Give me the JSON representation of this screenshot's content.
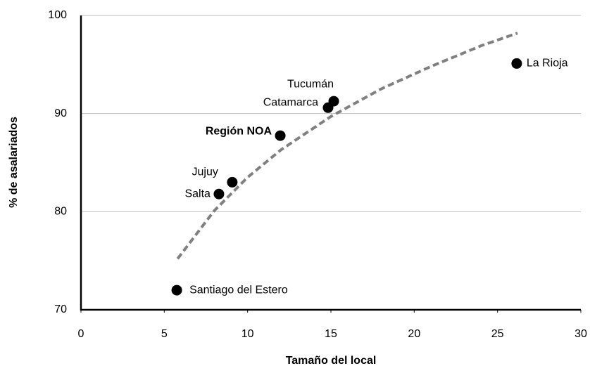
{
  "chart_data": {
    "type": "scatter",
    "xlabel": "Tamaño del local",
    "ylabel": "% de asalariados",
    "series": [
      {
        "color": "#000000",
        "labels": [
          "Santiago del Estero",
          "Salta",
          "Jujuy",
          "Región NOA",
          "Catamarca",
          "Tucumán",
          "La Rioja"
        ],
        "x": [
          5.75,
          8.28,
          9.08,
          11.96,
          14.83,
          15.17,
          26.15
        ],
        "values": [
          72.0,
          81.8,
          83.0,
          87.75,
          90.6,
          91.26,
          95.1
        ]
      }
    ],
    "trendline": {
      "color": "#808080",
      "x": [
        5.8,
        8,
        10,
        12,
        15,
        18,
        21,
        24,
        26.2
      ],
      "y": [
        75.2,
        80.1,
        83.5,
        86.3,
        89.7,
        92.5,
        94.8,
        96.9,
        98.2
      ]
    },
    "xlim": [
      0,
      30
    ],
    "xticks": [
      0,
      5,
      10,
      15,
      20,
      25,
      30
    ],
    "ylim": [
      70,
      100
    ],
    "yticks": [
      70,
      80,
      90,
      100
    ],
    "grid": true
  }
}
